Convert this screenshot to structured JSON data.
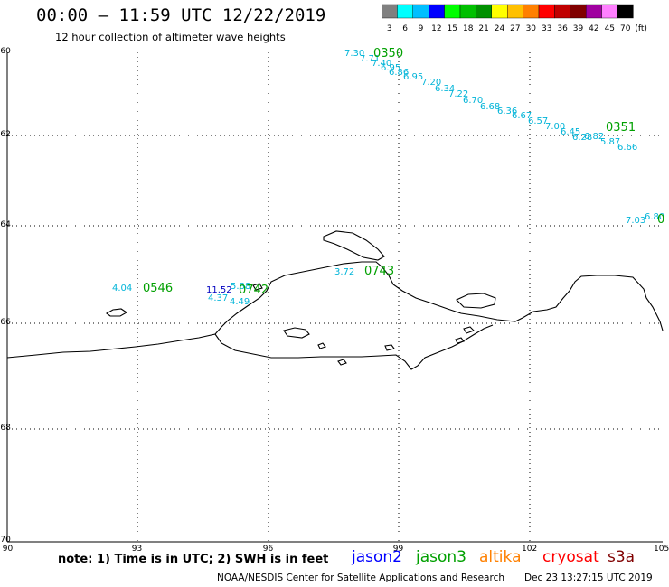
{
  "header": {
    "title": "00:00 – 11:59 UTC 12/22/2019",
    "subtitle": "12 hour collection of altimeter wave heights"
  },
  "colorbar": {
    "labels": [
      "3",
      "6",
      "9",
      "12",
      "15",
      "18",
      "21",
      "24",
      "27",
      "30",
      "33",
      "36",
      "39",
      "42",
      "45",
      "70",
      "(ft)"
    ],
    "colors": [
      "#808080",
      "#00ffff",
      "#00bfff",
      "#0000ff",
      "#00ff00",
      "#00c000",
      "#009000",
      "#ffff00",
      "#ffc000",
      "#ff8000",
      "#ff0000",
      "#c00000",
      "#800000",
      "#a000a0",
      "#ff80ff",
      "#000000"
    ]
  },
  "axes": {
    "lat_labels": [
      "-60",
      "-62",
      "-64",
      "-66",
      "-68",
      "-70"
    ],
    "lon_labels": [
      "90",
      "93",
      "96",
      "99",
      "102",
      "105"
    ]
  },
  "passes": {
    "p0350": {
      "time": "0350",
      "color": "#00a000",
      "values": [
        "7.30",
        "7.71",
        "7.40",
        "6.95",
        "6.86",
        "6.95",
        "7.20",
        "6.34",
        "7.22",
        "6.70",
        "6.68",
        "6.36",
        "6.67",
        "6.57",
        "7.00",
        "6.45",
        "6.28"
      ]
    },
    "p0351": {
      "time": "0351",
      "color": "#00a000",
      "values": [
        "6.82",
        "5.87",
        "6.66",
        "7.03",
        "6.80"
      ]
    },
    "p0546": {
      "time": "0546",
      "color": "#00a000",
      "values": [
        "4.04"
      ]
    },
    "p0742": {
      "time": "0742",
      "color": "#00a000",
      "values": [
        "11.52",
        "5.88",
        "4.37",
        "4.49"
      ]
    },
    "p0743": {
      "time": "0743",
      "color": "#00a000",
      "values": [
        "3.72"
      ]
    }
  },
  "footer": {
    "note": "note:  1) Time is in UTC;  2) SWH is in feet",
    "legend": [
      {
        "name": "jason2",
        "color": "#0000ff"
      },
      {
        "name": "jason3",
        "color": "#00a000"
      },
      {
        "name": "altika",
        "color": "#ff8000"
      },
      {
        "name": "cryosat",
        "color": "#ff0000"
      },
      {
        "name": "s3a",
        "color": "#800000"
      }
    ],
    "credit": "NOAA/NESDIS Center for Satellite Applications and Research",
    "timestamp": "Dec 23 13:27:15 UTC 2019"
  }
}
